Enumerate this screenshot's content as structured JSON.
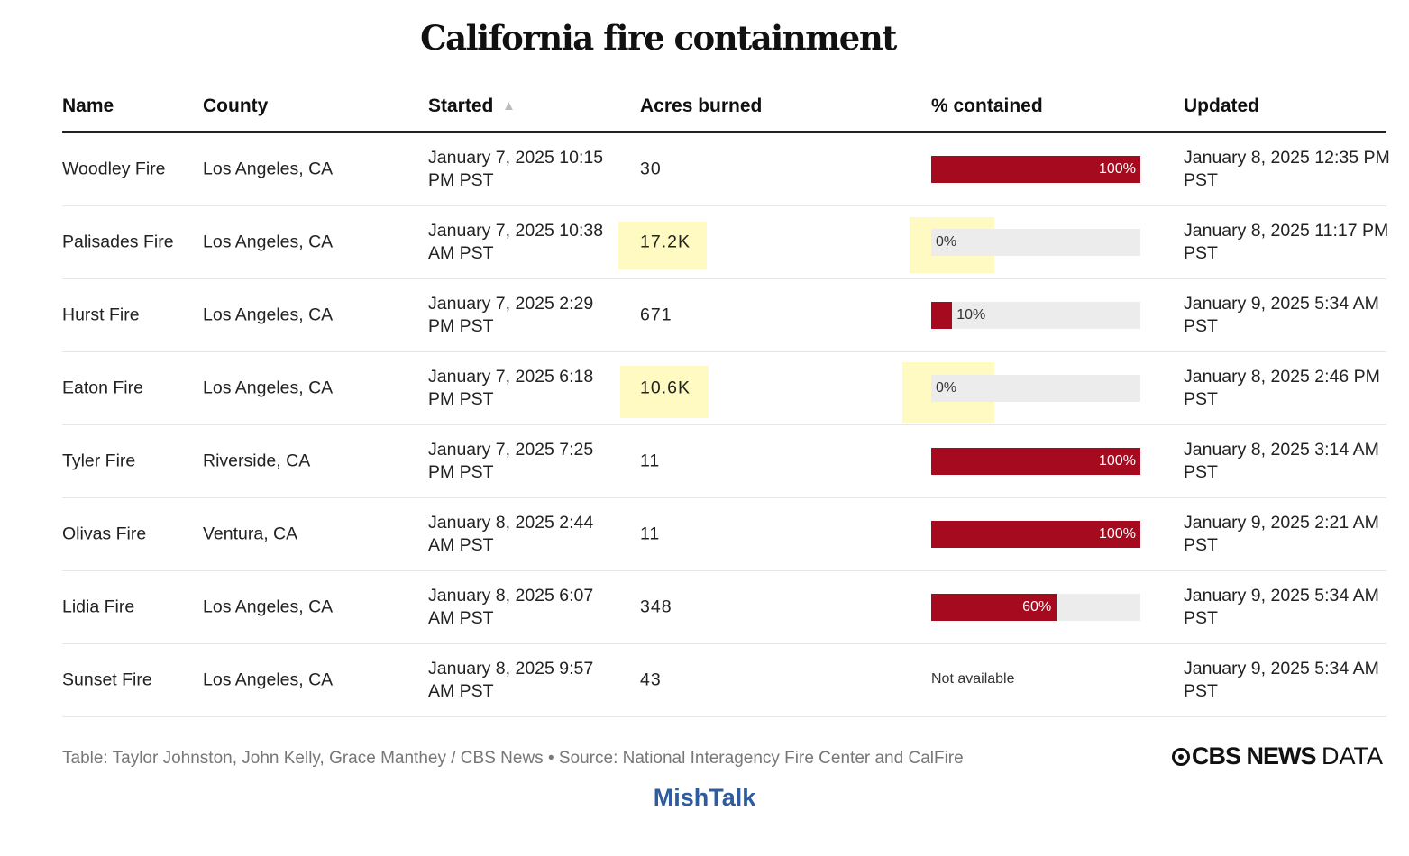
{
  "title": "California fire containment",
  "columns": [
    "Name",
    "County",
    "Started",
    "Acres burned",
    "% contained",
    "Updated"
  ],
  "sort_indicator": "▲",
  "colors": {
    "bar_fill": "#a50a1e",
    "bar_track": "#ececec",
    "highlight": "#fff578"
  },
  "chart_data": {
    "type": "table",
    "title": "California fire containment",
    "rows": [
      {
        "name": "Woodley Fire",
        "county": "Los Angeles, CA",
        "started": "January 7, 2025 10:15 PM PST",
        "acres": "30",
        "contained": 100,
        "contained_label": "100%",
        "updated": "January 8, 2025 12:35 PM PST"
      },
      {
        "name": "Palisades Fire",
        "county": "Los Angeles, CA",
        "started": "January 7, 2025 10:38 AM PST",
        "acres": "17.2K",
        "contained": 0,
        "contained_label": "0%",
        "updated": "January 8, 2025 11:17 PM PST",
        "highlighted": true
      },
      {
        "name": "Hurst Fire",
        "county": "Los Angeles, CA",
        "started": "January 7, 2025 2:29 PM PST",
        "acres": "671",
        "contained": 10,
        "contained_label": "10%",
        "updated": "January 9, 2025 5:34 AM PST"
      },
      {
        "name": "Eaton Fire",
        "county": "Los Angeles, CA",
        "started": "January 7, 2025 6:18 PM PST",
        "acres": "10.6K",
        "contained": 0,
        "contained_label": "0%",
        "updated": "January 8, 2025 2:46 PM PST",
        "highlighted": true
      },
      {
        "name": "Tyler Fire",
        "county": "Riverside, CA",
        "started": "January 7, 2025 7:25 PM PST",
        "acres": "11",
        "contained": 100,
        "contained_label": "100%",
        "updated": "January 8, 2025 3:14 AM PST"
      },
      {
        "name": "Olivas Fire",
        "county": "Ventura, CA",
        "started": "January 8, 2025 2:44 AM PST",
        "acres": "11",
        "contained": 100,
        "contained_label": "100%",
        "updated": "January 9, 2025 2:21 AM PST"
      },
      {
        "name": "Lidia Fire",
        "county": "Los Angeles, CA",
        "started": "January 8, 2025 6:07 AM PST",
        "acres": "348",
        "contained": 60,
        "contained_label": "60%",
        "updated": "January 9, 2025 5:34 AM PST"
      },
      {
        "name": "Sunset Fire",
        "county": "Los Angeles, CA",
        "started": "January 8, 2025 9:57 AM PST",
        "acres": "43",
        "contained": null,
        "contained_label": "Not available",
        "updated": "January 9, 2025 5:34 AM PST"
      }
    ]
  },
  "footer": {
    "credit": "Table: Taylor Johnston, John Kelly, Grace Manthey / CBS News • Source: National Interagency Fire Center and CalFire",
    "logo_main": "CBS NEWS",
    "logo_sub": "DATA"
  },
  "watermark": "MishTalk"
}
